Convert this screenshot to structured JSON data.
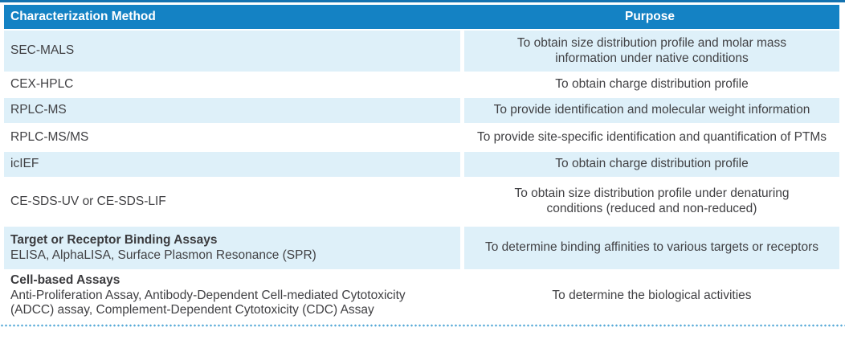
{
  "colors": {
    "header_bg": "#1482c4",
    "header_text": "#ffffff",
    "row_stripe": "#def0f9",
    "body_text": "#414144",
    "top_rule": "#1372b0",
    "dotted_rule": "#57aad7"
  },
  "table": {
    "headers": {
      "method": "Characterization Method",
      "purpose": "Purpose"
    },
    "rows": [
      {
        "method": "SEC-MALS",
        "purpose": [
          "To obtain size distribution profile and molar mass",
          "information under native conditions"
        ]
      },
      {
        "method": "CEX-HPLC",
        "purpose": "To obtain charge distribution profile"
      },
      {
        "method": "RPLC-MS",
        "purpose": "To provide identification and molecular weight information"
      },
      {
        "method": "RPLC-MS/MS",
        "purpose": "To provide site-specific identification and quantification of PTMs"
      },
      {
        "method": "icIEF",
        "purpose": "To obtain charge distribution profile"
      },
      {
        "method": "CE-SDS-UV or CE-SDS-LIF",
        "purpose": [
          "To obtain size distribution profile under denaturing",
          "conditions (reduced and non-reduced)"
        ]
      },
      {
        "method_title": "Target or Receptor Binding Assays",
        "method_sub": "ELISA, AlphaLISA, Surface Plasmon Resonance (SPR)",
        "purpose": "To determine binding affinities to various targets or receptors"
      },
      {
        "method_title": "Cell-based Assays",
        "method_sub": [
          "Anti-Proliferation Assay, Antibody-Dependent Cell-mediated Cytotoxicity",
          "(ADCC) assay, Complement-Dependent Cytotoxicity (CDC) Assay"
        ],
        "purpose": "To determine the biological activities"
      }
    ]
  }
}
